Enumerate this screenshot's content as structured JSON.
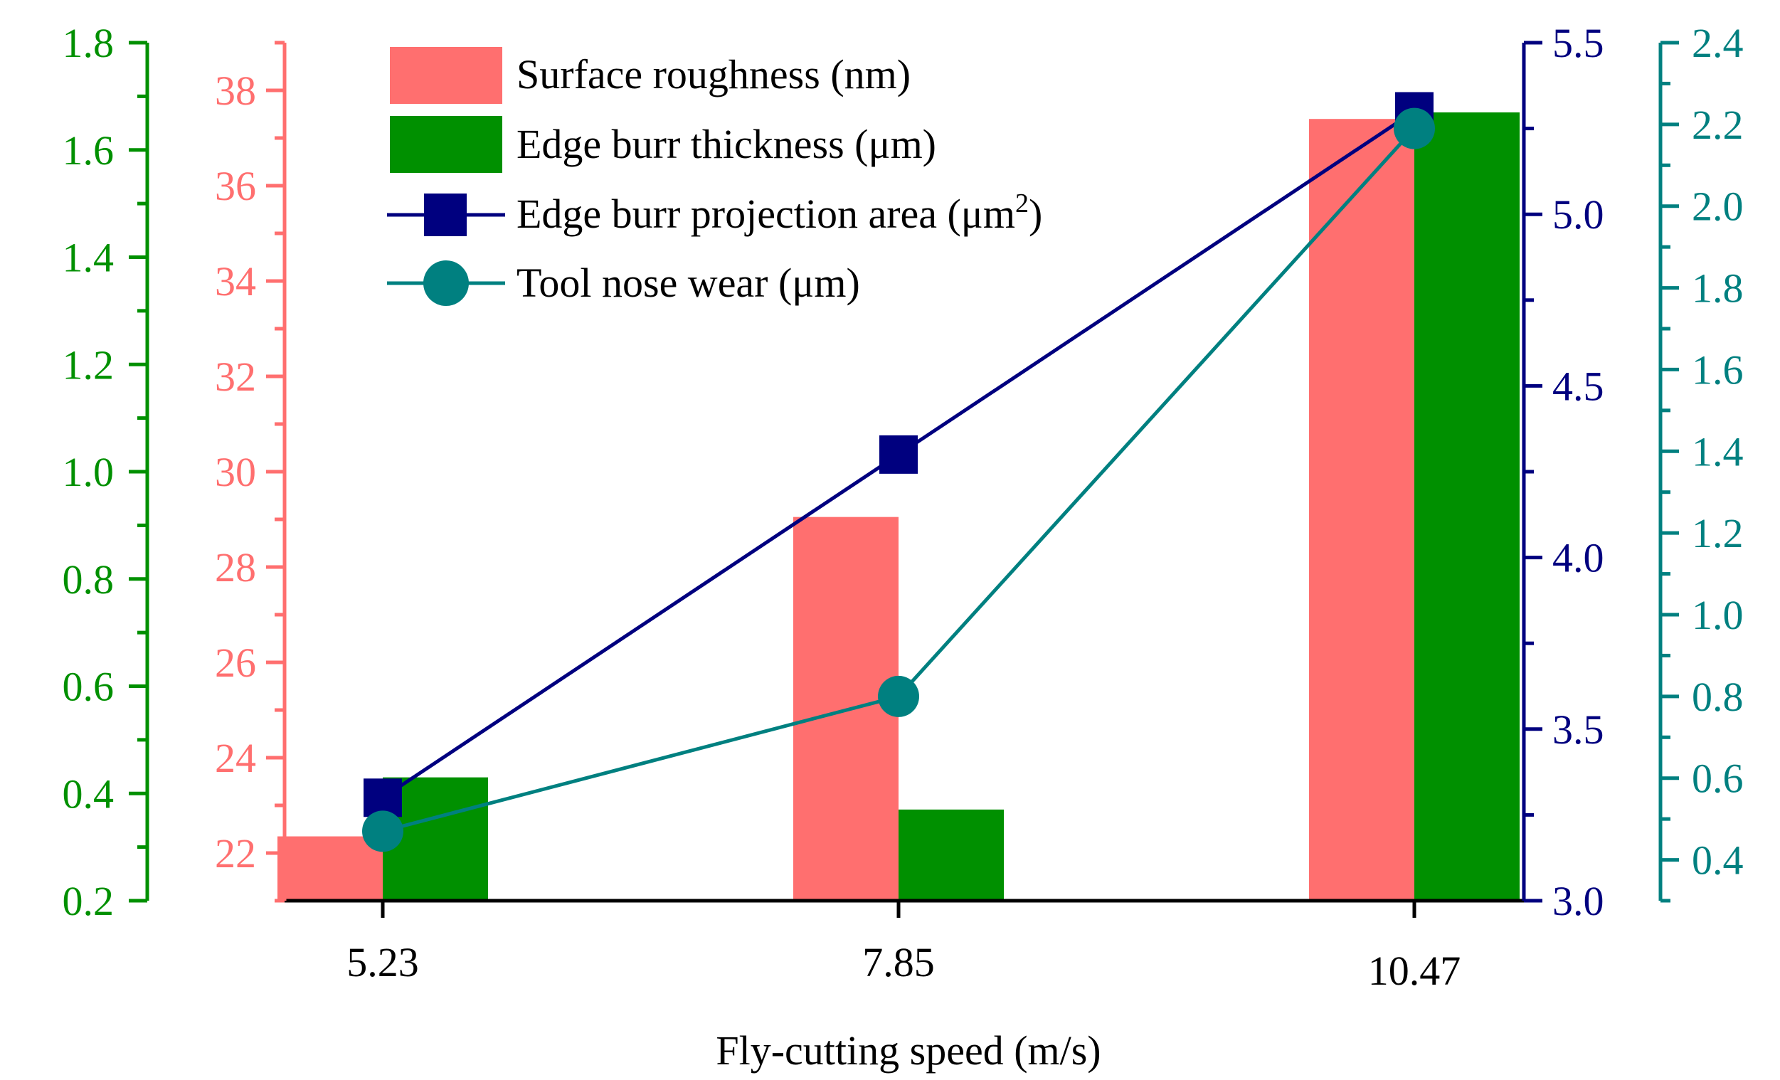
{
  "chart_data": {
    "type": "bar",
    "xlabel": "Fly-cutting speed (m/s)",
    "categories": [
      "5.23",
      "7.85",
      "10.47"
    ],
    "colors": {
      "roughness": "#ff6f6f",
      "burr_thickness": "#009000",
      "projection_area": "#00007f",
      "nose_wear": "#008080",
      "axis": "#000000"
    },
    "legend": {
      "position": "top-center",
      "items": [
        "Surface roughness (nm)",
        "Edge burr thickness (μm)",
        "Edge burr projection area (μm",
        "Tool nose wear (μm)"
      ],
      "superscript": "2",
      "close_paren": ")"
    },
    "axes": {
      "burr_thickness": {
        "side": "left-outer",
        "ylim": [
          0.2,
          1.8
        ],
        "ticks": [
          "0.2",
          "0.4",
          "0.6",
          "0.8",
          "1.0",
          "1.2",
          "1.4",
          "1.6",
          "1.8"
        ]
      },
      "roughness": {
        "side": "left-inner",
        "ylim": [
          21,
          39
        ],
        "ticks": [
          "22",
          "24",
          "26",
          "28",
          "30",
          "32",
          "34",
          "36",
          "38"
        ]
      },
      "projection_area": {
        "side": "right-inner",
        "ylim": [
          3.0,
          5.5
        ],
        "ticks": [
          "3.0",
          "3.5",
          "4.0",
          "4.5",
          "5.0",
          "5.5"
        ]
      },
      "nose_wear": {
        "side": "right-outer",
        "ylim": [
          0.3,
          2.4
        ],
        "ticks": [
          "0.4",
          "0.6",
          "0.8",
          "1.0",
          "1.2",
          "1.4",
          "1.6",
          "1.8",
          "2.0",
          "2.2",
          "2.4"
        ]
      }
    },
    "series": [
      {
        "name": "Surface roughness (nm)",
        "kind": "bar",
        "axis": "roughness",
        "values": [
          22.35,
          29.05,
          37.4
        ]
      },
      {
        "name": "Edge burr thickness (μm)",
        "kind": "bar",
        "axis": "burr_thickness",
        "values": [
          0.43,
          0.37,
          1.67
        ]
      },
      {
        "name": "Edge burr projection area (μm²)",
        "kind": "line",
        "marker": "square",
        "axis": "projection_area",
        "values": [
          3.3,
          4.3,
          5.3
        ]
      },
      {
        "name": "Tool nose wear (μm)",
        "kind": "line",
        "marker": "circle",
        "axis": "nose_wear",
        "values": [
          0.47,
          0.8,
          2.19
        ]
      }
    ]
  }
}
